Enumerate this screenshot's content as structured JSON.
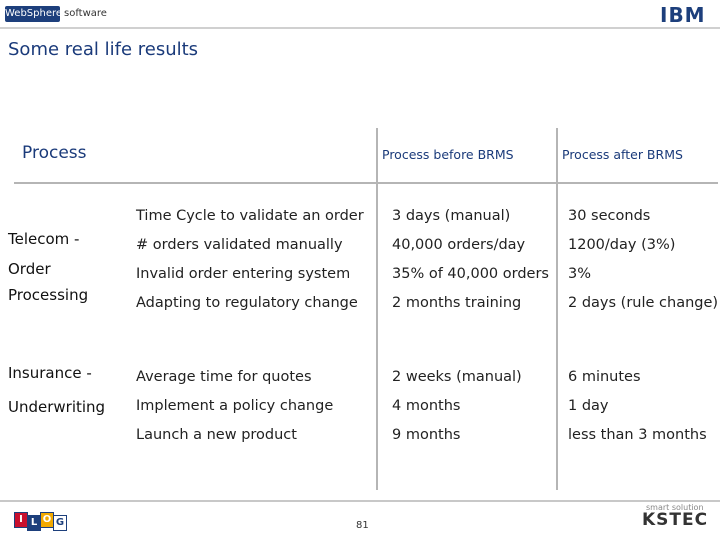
{
  "header": {
    "brand": "WebSphere",
    "product": "software",
    "logo": "IBM"
  },
  "title": "Some real life results",
  "table": {
    "columns": [
      "Process",
      "Process before BRMS",
      "Process after BRMS"
    ],
    "groups": [
      {
        "label": [
          "Telecom -",
          "Order",
          "Processing"
        ],
        "rows": [
          [
            "Time Cycle to validate an order",
            "3 days (manual)",
            "30 seconds"
          ],
          [
            "# orders validated manually",
            "40,000 orders/day",
            "1200/day (3%)"
          ],
          [
            "Invalid order entering system",
            "35% of 40,000 orders",
            "3%"
          ],
          [
            "Adapting to regulatory change",
            "2 months training",
            "2 days (rule change)"
          ]
        ]
      },
      {
        "label": [
          "Insurance -",
          "Underwriting"
        ],
        "rows": [
          [
            "Average time for quotes",
            "2 weeks (manual)",
            "6 minutes"
          ],
          [
            "Implement a policy change",
            "4 months",
            "1 day"
          ],
          [
            "Launch a new product",
            "9 months",
            "less than 3 months"
          ]
        ]
      }
    ]
  },
  "footer": {
    "page": "81",
    "left_logo": [
      "I",
      "L",
      "O",
      "G"
    ],
    "right_tagline": "smart solution",
    "right_logo": "KSTEC"
  }
}
